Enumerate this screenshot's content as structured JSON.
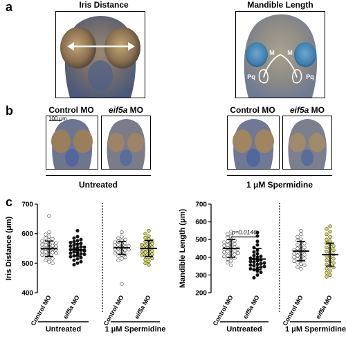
{
  "panels": {
    "a": "a",
    "b": "b",
    "c": "c"
  },
  "panel_a": {
    "left_title": "Iris Distance",
    "right_title": "Mandible Length",
    "mandible_labels": [
      "M",
      "M",
      "Pq",
      "Pq"
    ]
  },
  "panel_b": {
    "left": {
      "control": "Control MO",
      "morph_italic": "eif5a",
      "morph_suffix": " MO",
      "group": "Untreated"
    },
    "right": {
      "control": "Control MO",
      "morph_italic": "eif5a",
      "morph_suffix": " MO",
      "group": "1 μM Spermidine"
    },
    "scale_bar": "100 μm"
  },
  "colors": {
    "control": "#ffffff",
    "eif5a_untreated": "#111111",
    "eif5a_spermidine": "#d9dc4e",
    "marker_edge": "#444444"
  },
  "chart_data": [
    {
      "type": "scatter",
      "ylabel": "Iris Distance (μm)",
      "ylim": [
        400,
        700
      ],
      "yticks": [
        400,
        500,
        600,
        700
      ],
      "categories": [
        "Control MO",
        "eif5a MO",
        "Control MO",
        "eif5a MO"
      ],
      "category_italic": [
        false,
        true,
        false,
        true
      ],
      "group_labels": [
        "Untreated",
        "1 μM Spermidine"
      ],
      "divider_after": 2,
      "series": [
        {
          "mean": 549,
          "sd": 26,
          "fill": "#ffffff",
          "values": [
            660,
            605,
            597,
            590,
            585,
            582,
            578,
            575,
            572,
            570,
            568,
            565,
            563,
            561,
            559,
            557,
            555,
            553,
            551,
            549,
            548,
            546,
            544,
            542,
            540,
            538,
            536,
            534,
            531,
            528,
            525,
            520,
            515,
            510,
            505,
            500
          ]
        },
        {
          "mean": 545,
          "sd": 21,
          "fill": "#111111",
          "values": [
            610,
            590,
            585,
            580,
            576,
            573,
            570,
            567,
            564,
            561,
            558,
            556,
            554,
            552,
            550,
            548,
            546,
            544,
            542,
            540,
            538,
            536,
            534,
            532,
            530,
            528,
            525,
            522,
            519,
            515,
            510,
            505,
            500,
            495
          ]
        },
        {
          "mean": 552,
          "sd": 22,
          "fill": "#ffffff",
          "values": [
            605,
            590,
            585,
            580,
            577,
            574,
            571,
            568,
            565,
            562,
            560,
            558,
            556,
            554,
            552,
            550,
            548,
            546,
            544,
            542,
            540,
            537,
            534,
            531,
            528,
            524,
            520,
            515,
            510,
            430
          ]
        },
        {
          "mean": 550,
          "sd": 27,
          "fill": "#d9dc4e",
          "values": [
            610,
            600,
            592,
            586,
            581,
            577,
            573,
            569,
            566,
            563,
            560,
            557,
            554,
            551,
            548,
            545,
            542,
            539,
            536,
            533,
            530,
            527,
            524,
            520,
            516,
            512,
            506,
            500,
            494
          ]
        }
      ]
    },
    {
      "type": "scatter",
      "ylabel": "Mandible Length (μm)",
      "ylim": [
        200,
        700
      ],
      "yticks": [
        200,
        300,
        400,
        500,
        600,
        700
      ],
      "categories": [
        "Control MO",
        "eif5a MO",
        "Control MO",
        "eif5a MO"
      ],
      "category_italic": [
        false,
        true,
        false,
        true
      ],
      "group_labels": [
        "Untreated",
        "1 μM Spermidine"
      ],
      "divider_after": 2,
      "annotation": "p=0.0146",
      "series": [
        {
          "mean": 450,
          "sd": 50,
          "fill": "#ffffff",
          "values": [
            545,
            530,
            520,
            510,
            500,
            495,
            490,
            485,
            480,
            475,
            470,
            465,
            460,
            455,
            452,
            449,
            446,
            443,
            440,
            436,
            432,
            428,
            424,
            420,
            415,
            410,
            405,
            400,
            395,
            390,
            380,
            370,
            355
          ]
        },
        {
          "mean": 390,
          "sd": 60,
          "fill": "#111111",
          "values": [
            540,
            520,
            490,
            470,
            455,
            440,
            430,
            420,
            410,
            405,
            400,
            395,
            390,
            385,
            380,
            376,
            372,
            368,
            364,
            360,
            356,
            352,
            348,
            344,
            340,
            335,
            330,
            322,
            315,
            300,
            285
          ]
        },
        {
          "mean": 435,
          "sd": 55,
          "fill": "#ffffff",
          "values": [
            550,
            530,
            515,
            505,
            495,
            485,
            478,
            470,
            463,
            456,
            450,
            445,
            440,
            435,
            430,
            425,
            420,
            415,
            410,
            405,
            400,
            395,
            390,
            385,
            378,
            370,
            362,
            355,
            345,
            335
          ]
        },
        {
          "mean": 415,
          "sd": 65,
          "fill": "#d9dc4e",
          "values": [
            575,
            560,
            545,
            530,
            515,
            500,
            490,
            480,
            472,
            464,
            456,
            448,
            440,
            432,
            424,
            416,
            408,
            400,
            392,
            384,
            376,
            368,
            360,
            352,
            344,
            336,
            325,
            312,
            300,
            290
          ]
        }
      ]
    }
  ]
}
